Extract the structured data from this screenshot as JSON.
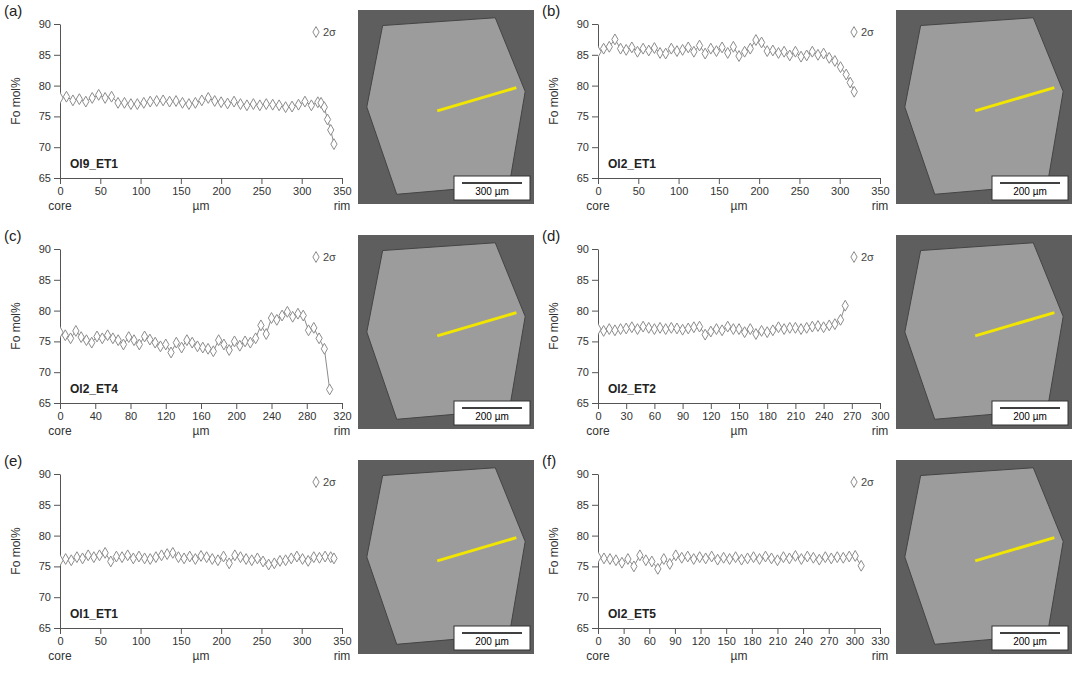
{
  "chart_data": [
    {
      "type": "line",
      "panel": "(a)",
      "sample": "Ol9_ET1",
      "y_label": "Fo mol%",
      "x_label": "µm",
      "core_label": "core",
      "rim_label": "rim",
      "error_label": "2σ",
      "error_2sigma": 0.7,
      "scale_bar": "300 µm",
      "color": "#8c8c8c",
      "marker": "diamond-open",
      "xlim": [
        0,
        350
      ],
      "xticks": [
        0,
        50,
        100,
        150,
        200,
        250,
        300,
        350
      ],
      "ylim": [
        65,
        90
      ],
      "yticks": [
        65,
        70,
        75,
        80,
        85,
        90
      ],
      "x": [
        0,
        8,
        16,
        24,
        32,
        40,
        48,
        56,
        64,
        72,
        80,
        88,
        96,
        104,
        112,
        120,
        128,
        136,
        144,
        152,
        160,
        168,
        176,
        184,
        192,
        200,
        208,
        216,
        224,
        232,
        240,
        248,
        256,
        264,
        272,
        280,
        288,
        296,
        304,
        312,
        320,
        324,
        328,
        332,
        336,
        340
      ],
      "values": [
        78,
        78.2,
        77.6,
        77.8,
        77.4,
        78,
        78.5,
        78,
        78.2,
        77.2,
        77.2,
        77,
        77,
        77.2,
        77.4,
        77.5,
        77.6,
        77.4,
        77.5,
        77.2,
        77,
        77.2,
        77.6,
        78,
        77.5,
        77.3,
        77.1,
        77.4,
        77,
        76.8,
        77,
        76.8,
        77,
        76.9,
        76.8,
        76.5,
        76.6,
        76.9,
        77.4,
        76.8,
        77.3,
        77.2,
        76.5,
        74.5,
        72.8,
        70.5
      ]
    },
    {
      "type": "line",
      "panel": "(b)",
      "sample": "Ol2_ET1",
      "y_label": "Fo mol%",
      "x_label": "µm",
      "core_label": "core",
      "rim_label": "rim",
      "error_label": "2σ",
      "error_2sigma": 0.7,
      "scale_bar": "200 µm",
      "color": "#8c8c8c",
      "marker": "diamond-open",
      "xlim": [
        0,
        350
      ],
      "xticks": [
        0,
        50,
        100,
        150,
        200,
        250,
        300,
        350
      ],
      "ylim": [
        65,
        90
      ],
      "yticks": [
        65,
        70,
        75,
        80,
        85,
        90
      ],
      "x": [
        0,
        7,
        14,
        21,
        28,
        35,
        42,
        49,
        56,
        63,
        70,
        77,
        84,
        91,
        98,
        105,
        112,
        119,
        126,
        133,
        140,
        147,
        154,
        161,
        168,
        175,
        182,
        189,
        196,
        203,
        210,
        217,
        224,
        231,
        238,
        245,
        252,
        259,
        266,
        273,
        280,
        287,
        294,
        301,
        308,
        313,
        318
      ],
      "values": [
        85.5,
        86,
        86.3,
        87.5,
        86,
        85.8,
        86.2,
        85.5,
        86,
        85.7,
        86.1,
        85.3,
        85.2,
        86,
        85.6,
        85.8,
        86.2,
        85.5,
        86.5,
        85.2,
        86,
        85.6,
        86.2,
        85.3,
        86.3,
        84.8,
        85.5,
        86,
        87.4,
        87,
        85.6,
        85.7,
        85.3,
        85.5,
        84.9,
        85.5,
        84.7,
        84.9,
        85.5,
        85,
        85.2,
        84.5,
        84,
        83,
        81.8,
        80.5,
        79
      ]
    },
    {
      "type": "line",
      "panel": "(c)",
      "sample": "Ol2_ET4",
      "y_label": "Fo mol%",
      "x_label": "µm",
      "core_label": "core",
      "rim_label": "rim",
      "error_label": "2σ",
      "error_2sigma": 0.7,
      "scale_bar": "200 µm",
      "color": "#8c8c8c",
      "marker": "diamond-open",
      "xlim": [
        0,
        320
      ],
      "xticks": [
        0,
        40,
        80,
        120,
        160,
        200,
        240,
        280,
        320
      ],
      "ylim": [
        65,
        90
      ],
      "yticks": [
        65,
        70,
        75,
        80,
        85,
        90
      ],
      "x": [
        0,
        6,
        12,
        18,
        24,
        30,
        36,
        42,
        48,
        54,
        60,
        66,
        72,
        78,
        84,
        90,
        96,
        102,
        108,
        114,
        120,
        126,
        132,
        138,
        144,
        150,
        156,
        162,
        168,
        174,
        180,
        186,
        192,
        198,
        204,
        210,
        216,
        222,
        228,
        234,
        240,
        246,
        252,
        258,
        264,
        270,
        276,
        282,
        288,
        294,
        300,
        306
      ],
      "values": [
        76.5,
        76,
        75.5,
        76.7,
        75.7,
        75.2,
        74.8,
        75.8,
        75.5,
        76,
        75.5,
        75.2,
        74.5,
        75.7,
        75.2,
        74.5,
        75.8,
        75.3,
        74.8,
        74.2,
        74.5,
        73.2,
        74.8,
        74,
        75.2,
        74.8,
        74.2,
        74,
        73.8,
        73.4,
        75.2,
        74.5,
        73.6,
        75,
        74.3,
        75,
        74.8,
        75.5,
        77.6,
        76.2,
        78.8,
        78.5,
        79.2,
        79.8,
        79,
        79.5,
        79.2,
        76.8,
        77.2,
        75.5,
        73.8,
        67.2
      ]
    },
    {
      "type": "line",
      "panel": "(d)",
      "sample": "Ol2_ET2",
      "y_label": "Fo mol%",
      "x_label": "µm",
      "core_label": "core",
      "rim_label": "rim",
      "error_label": "2σ",
      "error_2sigma": 0.7,
      "scale_bar": "200 µm",
      "color": "#8c8c8c",
      "marker": "diamond-open",
      "xlim": [
        0,
        300
      ],
      "xticks": [
        0,
        30,
        60,
        90,
        120,
        150,
        180,
        210,
        240,
        270,
        300
      ],
      "ylim": [
        65,
        90
      ],
      "yticks": [
        65,
        70,
        75,
        80,
        85,
        90
      ],
      "x": [
        0,
        6,
        12,
        18,
        24,
        30,
        36,
        42,
        48,
        54,
        60,
        66,
        72,
        78,
        84,
        90,
        96,
        102,
        108,
        114,
        120,
        126,
        132,
        138,
        144,
        150,
        156,
        162,
        168,
        174,
        180,
        186,
        192,
        198,
        204,
        210,
        216,
        222,
        228,
        234,
        240,
        246,
        252,
        258,
        263
      ],
      "values": [
        77,
        76.7,
        77,
        76.8,
        77,
        77.1,
        77.3,
        77,
        77.4,
        77.2,
        77,
        77.2,
        77,
        77.2,
        77.1,
        76.9,
        77.1,
        77.3,
        77.4,
        76.1,
        76.6,
        77,
        76.8,
        77.4,
        77,
        77,
        76.5,
        77,
        76.2,
        76.7,
        76.5,
        76.8,
        77.3,
        77,
        77.2,
        77.2,
        77,
        77.2,
        77.4,
        77.5,
        77.3,
        77.6,
        77.8,
        78.5,
        80.8
      ]
    },
    {
      "type": "line",
      "panel": "(e)",
      "sample": "Ol1_ET1",
      "y_label": "Fo mol%",
      "x_label": "µm",
      "core_label": "core",
      "rim_label": "rim",
      "error_label": "2σ",
      "error_2sigma": 0.7,
      "scale_bar": "200 µm",
      "color": "#8c8c8c",
      "marker": "diamond-open",
      "xlim": [
        0,
        350
      ],
      "xticks": [
        0,
        50,
        100,
        150,
        200,
        250,
        300,
        350
      ],
      "ylim": [
        65,
        90
      ],
      "yticks": [
        65,
        70,
        75,
        80,
        85,
        90
      ],
      "x": [
        0,
        7,
        14,
        21,
        28,
        35,
        42,
        49,
        56,
        63,
        70,
        77,
        84,
        91,
        98,
        105,
        112,
        119,
        126,
        133,
        140,
        147,
        154,
        161,
        168,
        175,
        182,
        189,
        196,
        203,
        210,
        217,
        224,
        231,
        238,
        245,
        252,
        259,
        266,
        273,
        280,
        287,
        294,
        301,
        308,
        315,
        322,
        329,
        336,
        340
      ],
      "values": [
        76,
        76.2,
        76,
        76.5,
        76.3,
        76.8,
        76.5,
        76.8,
        77.2,
        75.8,
        76.6,
        76.5,
        76.8,
        76.3,
        76.6,
        76.3,
        76.2,
        76.5,
        76.8,
        77,
        77.2,
        76.5,
        76.3,
        76.6,
        76.2,
        76.7,
        76.5,
        76.2,
        76,
        76.6,
        75.5,
        76.8,
        76.5,
        76.2,
        76,
        76.3,
        75.8,
        75.3,
        75.5,
        75.9,
        76,
        76.3,
        76.6,
        76.2,
        75.9,
        76.5,
        76.4,
        76.6,
        76.5,
        76.3
      ]
    },
    {
      "type": "line",
      "panel": "(f)",
      "sample": "Ol2_ET5",
      "y_label": "Fo mol%",
      "x_label": "µm",
      "core_label": "core",
      "rim_label": "rim",
      "error_label": "2σ",
      "error_2sigma": 0.7,
      "scale_bar": "200 µm",
      "color": "#8c8c8c",
      "marker": "diamond-open",
      "xlim": [
        0,
        330
      ],
      "xticks": [
        0,
        30,
        60,
        90,
        120,
        150,
        180,
        210,
        240,
        270,
        300,
        330
      ],
      "ylim": [
        65,
        90
      ],
      "yticks": [
        65,
        70,
        75,
        80,
        85,
        90
      ],
      "x": [
        0,
        7,
        14,
        21,
        28,
        35,
        42,
        49,
        56,
        63,
        70,
        77,
        84,
        91,
        98,
        105,
        112,
        119,
        126,
        133,
        140,
        147,
        154,
        161,
        168,
        175,
        182,
        189,
        196,
        203,
        210,
        217,
        224,
        231,
        238,
        245,
        252,
        259,
        266,
        273,
        280,
        287,
        294,
        301,
        308
      ],
      "values": [
        76.5,
        76.3,
        76.2,
        76,
        75.6,
        76.2,
        75,
        76.8,
        76,
        75.8,
        74.6,
        76.2,
        75.4,
        76.8,
        76.4,
        76.6,
        76.2,
        76.5,
        76.3,
        76.6,
        76.1,
        76.4,
        76.2,
        76.5,
        76.1,
        76.3,
        76.5,
        76.2,
        76.6,
        76.3,
        76,
        76.5,
        76.3,
        76.7,
        76.2,
        76.6,
        76.4,
        76.1,
        76.5,
        76.3,
        76.5,
        76.4,
        76.6,
        76.7,
        75.1
      ]
    }
  ]
}
